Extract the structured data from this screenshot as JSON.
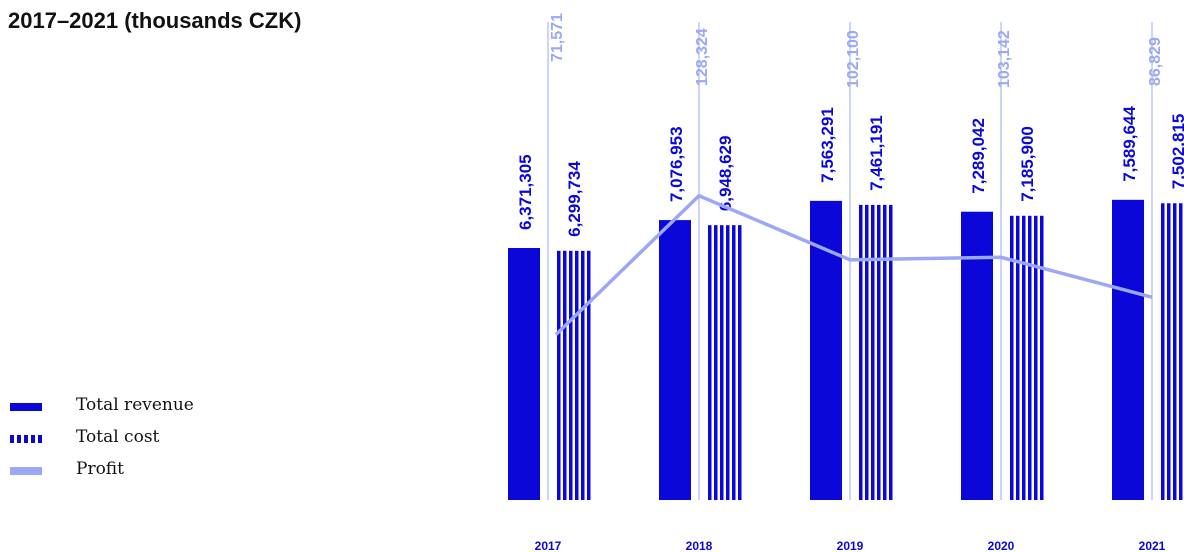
{
  "title": "2017–2021 (thousands CZK)",
  "colors": {
    "revenue": "#0a07d8",
    "cost": "#0a07d8",
    "profit": "#9aa8f5",
    "text": "#111111"
  },
  "legend": [
    {
      "label": "Total revenue",
      "pattern": "solid"
    },
    {
      "label": "Total cost",
      "pattern": "striped"
    },
    {
      "label": "Profit",
      "pattern": "light"
    }
  ],
  "chart_data": {
    "type": "bar",
    "categories": [
      "2017",
      "2018",
      "2019",
      "2020",
      "2021"
    ],
    "series": [
      {
        "name": "Total revenue",
        "values": [
          6371305,
          7076953,
          7563291,
          7289042,
          7589644
        ],
        "labels": [
          "6,371,305",
          "7,076,953",
          "7,563,291",
          "7,289,042",
          "7,589,644"
        ]
      },
      {
        "name": "Total cost",
        "values": [
          6299734,
          6948629,
          7461191,
          7185900,
          7502815
        ],
        "labels": [
          "6,299,734",
          "6,948,629",
          "7,461,191",
          "7,185,900",
          "7.502.815"
        ]
      },
      {
        "name": "Profit",
        "type": "line",
        "values": [
          71571,
          128324,
          102100,
          103142,
          86829
        ],
        "labels": [
          "71,571",
          "128,324",
          "102,100",
          "103,142",
          "86,829"
        ]
      }
    ],
    "title": "2017–2021 (thousands CZK)",
    "xlabel": "",
    "ylabel": "",
    "grid": false,
    "legend_position": "bottom-left"
  }
}
